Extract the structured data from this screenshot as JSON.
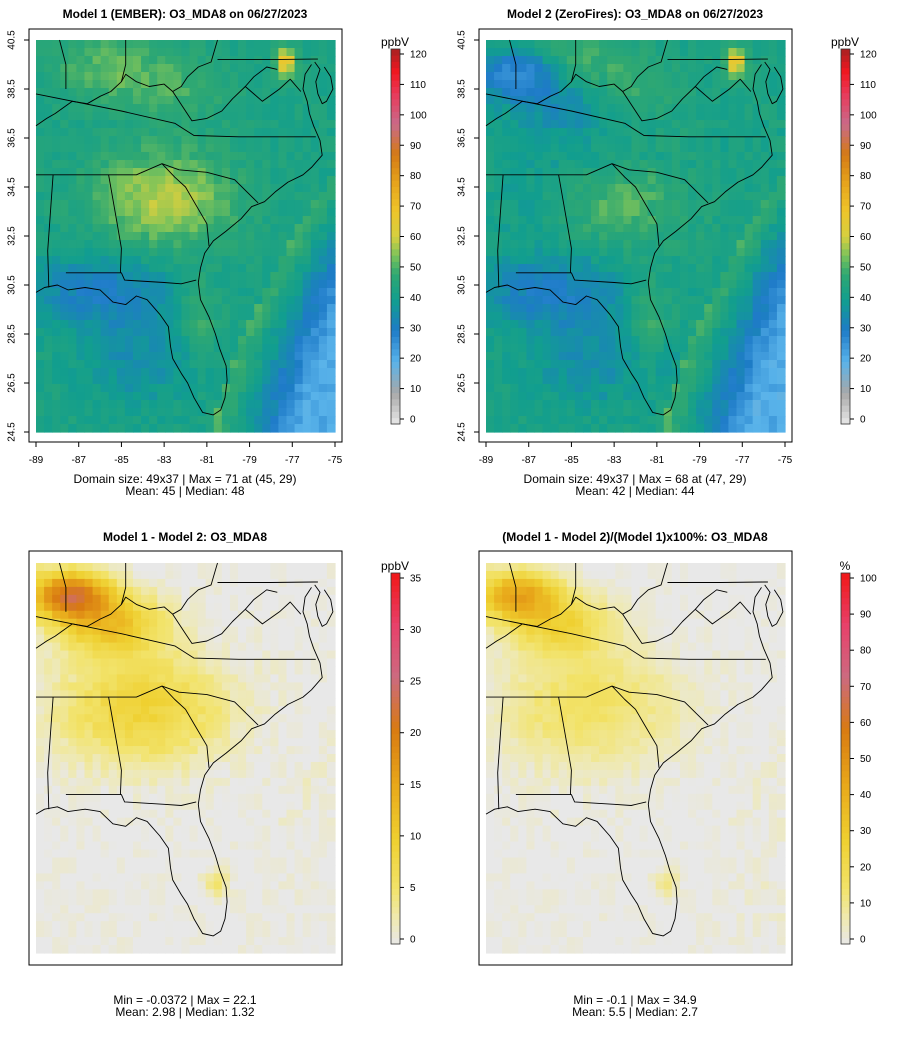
{
  "chart_data": [
    {
      "type": "heatmap",
      "title": "Model 1 (EMBER): O3_MDA8 on 06/27/2023",
      "colorbar": {
        "unit": "ppbV",
        "min": 0,
        "max": 120,
        "ticks": [
          "0",
          "10",
          "20",
          "30",
          "40",
          "50",
          "60",
          "70",
          "80",
          "90",
          "100",
          "110",
          "120"
        ]
      },
      "x_ticks": [
        "-89",
        "-87",
        "-85",
        "-83",
        "-81",
        "-79",
        "-77",
        "-75"
      ],
      "y_ticks": [
        "24.5",
        "26.5",
        "28.5",
        "30.5",
        "32.5",
        "34.5",
        "36.5",
        "38.5",
        "40.5"
      ],
      "xlim": [
        -89,
        -75
      ],
      "ylim": [
        24.5,
        40.5
      ],
      "stats_line1": "Domain size: 49x37 | Max = 71 at (45, 29)",
      "stats_line2": "Mean: 45 |  Median: 48",
      "field": "model1"
    },
    {
      "type": "heatmap",
      "title": "Model 2 (ZeroFires): O3_MDA8 on 06/27/2023",
      "colorbar": {
        "unit": "ppbV",
        "min": 0,
        "max": 120,
        "ticks": [
          "0",
          "10",
          "20",
          "30",
          "40",
          "50",
          "60",
          "70",
          "80",
          "90",
          "100",
          "110",
          "120"
        ]
      },
      "x_ticks": [
        "-89",
        "-87",
        "-85",
        "-83",
        "-81",
        "-79",
        "-77",
        "-75"
      ],
      "y_ticks": [
        "24.5",
        "26.5",
        "28.5",
        "30.5",
        "32.5",
        "34.5",
        "36.5",
        "38.5",
        "40.5"
      ],
      "xlim": [
        -89,
        -75
      ],
      "ylim": [
        24.5,
        40.5
      ],
      "stats_line1": "Domain size: 49x37 | Max = 68 at (47, 29)",
      "stats_line2": "Mean: 42 |  Median: 44",
      "field": "model2"
    },
    {
      "type": "heatmap",
      "title": "Model 1 - Model 2: O3_MDA8",
      "colorbar": {
        "unit": "ppbV",
        "min": 0,
        "max": 35,
        "ticks": [
          "0",
          "5",
          "10",
          "15",
          "20",
          "25",
          "30",
          "35"
        ]
      },
      "stats_line1": "Min = -0.0372 | Max = 22.1",
      "stats_line2": "Mean: 2.98 |  Median: 1.32",
      "field": "diff"
    },
    {
      "type": "heatmap",
      "title": "(Model 1 - Model 2)/(Model 1)x100%: O3_MDA8",
      "colorbar": {
        "unit": "%",
        "min": 0,
        "max": 100,
        "ticks": [
          "0",
          "10",
          "20",
          "30",
          "40",
          "50",
          "60",
          "70",
          "80",
          "90",
          "100"
        ]
      },
      "stats_line1": "Min = -0.1 | Max = 34.9",
      "stats_line2": "Mean: 5.5 |  Median: 2.7",
      "field": "pct"
    }
  ]
}
